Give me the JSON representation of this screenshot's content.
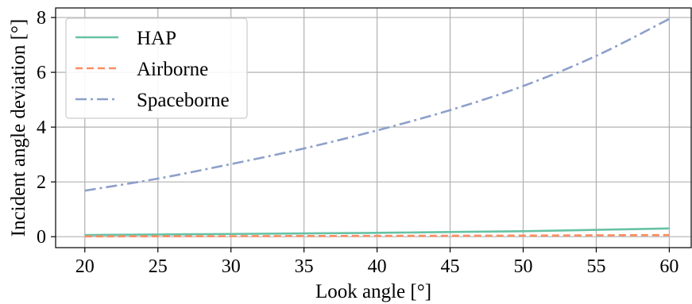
{
  "chart_data": {
    "type": "line",
    "title": "",
    "xlabel": "Look angle [°]",
    "ylabel": "Incident angle deviation [°]",
    "xlim": [
      18,
      61.5
    ],
    "ylim": [
      -0.4,
      8.35
    ],
    "xticks": [
      20,
      25,
      30,
      35,
      40,
      45,
      50,
      55,
      60
    ],
    "yticks": [
      0,
      2,
      4,
      6,
      8
    ],
    "grid": true,
    "legend_position": "top-left",
    "x": [
      20,
      25,
      30,
      35,
      40,
      45,
      50,
      55,
      60
    ],
    "series": [
      {
        "name": "HAP",
        "style": "solid",
        "color": "#66c2a5",
        "values": [
          0.06,
          0.08,
          0.1,
          0.12,
          0.14,
          0.17,
          0.2,
          0.25,
          0.3
        ]
      },
      {
        "name": "Airborne",
        "style": "dashed",
        "color": "#fc8d62",
        "values": [
          0.01,
          0.015,
          0.02,
          0.025,
          0.03,
          0.035,
          0.04,
          0.05,
          0.06
        ]
      },
      {
        "name": "Spaceborne",
        "style": "dashdot",
        "color": "#8da0cb",
        "values": [
          1.68,
          2.12,
          2.65,
          3.22,
          3.88,
          4.62,
          5.5,
          6.6,
          7.95
        ]
      }
    ]
  }
}
